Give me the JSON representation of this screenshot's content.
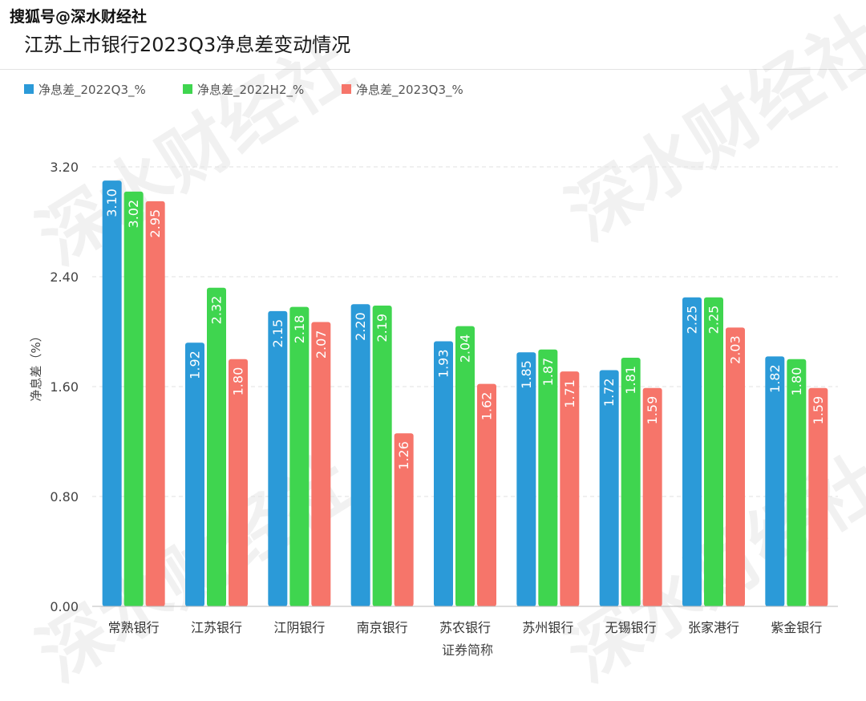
{
  "header": {
    "source_tag": "搜狐号@深水财经社",
    "watermark": "深水财经社"
  },
  "chart_data": {
    "type": "bar",
    "title": "江苏上市银行2023Q3净息差变动情况",
    "xlabel": "证券简称",
    "ylabel": "净息差（%）",
    "ylim": [
      0,
      3.2
    ],
    "yticks": [
      "0.00",
      "0.80",
      "1.60",
      "2.40",
      "3.20"
    ],
    "grid": true,
    "legend_position": "top-left",
    "categories": [
      "常熟银行",
      "江苏银行",
      "江阴银行",
      "南京银行",
      "苏农银行",
      "苏州银行",
      "无锡银行",
      "张家港行",
      "紫金银行"
    ],
    "series": [
      {
        "name": "净息差_2022Q3_%",
        "color": "#2b9ad8",
        "values": [
          3.1,
          1.92,
          2.15,
          2.2,
          1.93,
          1.85,
          1.72,
          2.25,
          1.82
        ]
      },
      {
        "name": "净息差_2022H2_%",
        "color": "#3fd54f",
        "values": [
          3.02,
          2.32,
          2.18,
          2.19,
          2.04,
          1.87,
          1.81,
          2.25,
          1.8
        ]
      },
      {
        "name": "净息差_2023Q3_%",
        "color": "#f6756a",
        "values": [
          2.95,
          1.8,
          2.07,
          1.26,
          1.62,
          1.71,
          1.59,
          2.03,
          1.59
        ]
      }
    ]
  }
}
